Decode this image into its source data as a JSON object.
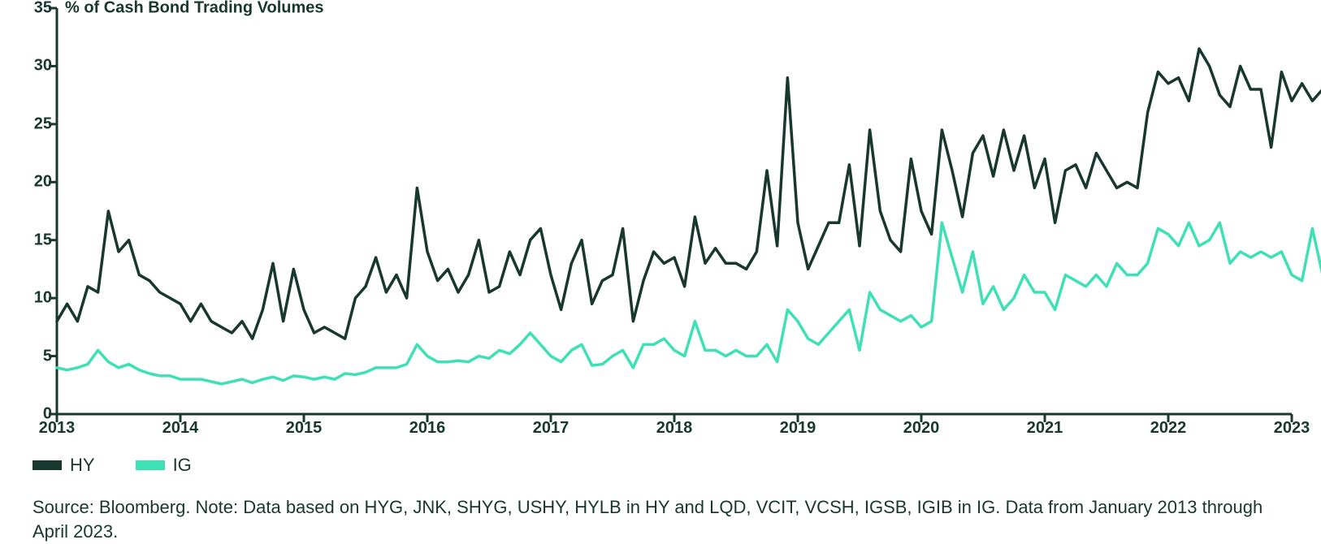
{
  "chart": {
    "type": "line",
    "axis_title": "% of Cash Bond Trading Volumes",
    "text_color": "#18382f",
    "background_color": "#ffffff",
    "axis_line_color": "#18382f",
    "axis_line_width": 3,
    "tick_length": 10,
    "y": {
      "min": 0,
      "max": 35,
      "step": 5,
      "label_fontsize": 20,
      "label_fontweight": 700
    },
    "x": {
      "min": 2013,
      "max": 2023,
      "ticks": [
        2013,
        2014,
        2015,
        2016,
        2017,
        2018,
        2019,
        2020,
        2021,
        2022,
        2023
      ],
      "label_fontsize": 20,
      "label_fontweight": 700
    },
    "line_width": 3.5,
    "series": [
      {
        "name": "HY",
        "color": "#18382f",
        "x": [
          2013.0,
          2013.083,
          2013.167,
          2013.25,
          2013.333,
          2013.417,
          2013.5,
          2013.583,
          2013.667,
          2013.75,
          2013.833,
          2013.917,
          2014.0,
          2014.083,
          2014.167,
          2014.25,
          2014.333,
          2014.417,
          2014.5,
          2014.583,
          2014.667,
          2014.75,
          2014.833,
          2014.917,
          2015.0,
          2015.083,
          2015.167,
          2015.25,
          2015.333,
          2015.417,
          2015.5,
          2015.583,
          2015.667,
          2015.75,
          2015.833,
          2015.917,
          2016.0,
          2016.083,
          2016.167,
          2016.25,
          2016.333,
          2016.417,
          2016.5,
          2016.583,
          2016.667,
          2016.75,
          2016.833,
          2016.917,
          2017.0,
          2017.083,
          2017.167,
          2017.25,
          2017.333,
          2017.417,
          2017.5,
          2017.583,
          2017.667,
          2017.75,
          2017.833,
          2017.917,
          2018.0,
          2018.083,
          2018.167,
          2018.25,
          2018.333,
          2018.417,
          2018.5,
          2018.583,
          2018.667,
          2018.75,
          2018.833,
          2018.917,
          2019.0,
          2019.083,
          2019.167,
          2019.25,
          2019.333,
          2019.417,
          2019.5,
          2019.583,
          2019.667,
          2019.75,
          2019.833,
          2019.917,
          2020.0,
          2020.083,
          2020.167,
          2020.25,
          2020.333,
          2020.417,
          2020.5,
          2020.583,
          2020.667,
          2020.75,
          2020.833,
          2020.917,
          2021.0,
          2021.083,
          2021.167,
          2021.25,
          2021.333,
          2021.417,
          2021.5,
          2021.583,
          2021.667,
          2021.75,
          2021.833,
          2021.917,
          2022.0,
          2022.083,
          2022.167,
          2022.25,
          2022.333,
          2022.417,
          2022.5,
          2022.583,
          2022.667,
          2022.75,
          2022.833,
          2022.917,
          2023.0,
          2023.083,
          2023.167,
          2023.25
        ],
        "y": [
          8.0,
          9.5,
          8.0,
          11.0,
          10.5,
          17.5,
          14.0,
          15.0,
          12.0,
          11.5,
          10.5,
          10.0,
          9.5,
          8.0,
          9.5,
          8.0,
          7.5,
          7.0,
          8.0,
          6.5,
          9.0,
          13.0,
          8.0,
          12.5,
          9.0,
          7.0,
          7.5,
          7.0,
          6.5,
          10.0,
          11.0,
          13.5,
          10.5,
          12.0,
          10.0,
          19.5,
          14.0,
          11.5,
          12.5,
          10.5,
          12.0,
          15.0,
          10.5,
          11.0,
          14.0,
          12.0,
          15.0,
          16.0,
          12.0,
          9.0,
          13.0,
          15.0,
          9.5,
          11.5,
          12.0,
          16.0,
          8.0,
          11.5,
          14.0,
          13.0,
          13.5,
          11.0,
          17.0,
          13.0,
          14.3,
          13.0,
          13.0,
          12.5,
          14.0,
          21.0,
          14.5,
          29.0,
          16.5,
          12.5,
          14.5,
          16.5,
          16.5,
          21.5,
          14.5,
          24.5,
          17.5,
          15.0,
          14.0,
          22.0,
          17.5,
          15.5,
          24.5,
          21.0,
          17.0,
          22.5,
          24.0,
          20.5,
          24.5,
          21.0,
          24.0,
          19.5,
          22.0,
          16.5,
          21.0,
          21.5,
          19.5,
          22.5,
          21.0,
          19.5,
          20.0,
          19.5,
          26.0,
          29.5,
          28.5,
          29.0,
          27.0,
          31.5,
          30.0,
          27.5,
          26.5,
          30.0,
          28.0,
          28.0,
          23.0,
          29.5,
          27.0,
          28.5,
          27.0,
          28.0
        ]
      },
      {
        "name": "IG",
        "color": "#3fe0b6",
        "x": [
          2013.0,
          2013.083,
          2013.167,
          2013.25,
          2013.333,
          2013.417,
          2013.5,
          2013.583,
          2013.667,
          2013.75,
          2013.833,
          2013.917,
          2014.0,
          2014.083,
          2014.167,
          2014.25,
          2014.333,
          2014.417,
          2014.5,
          2014.583,
          2014.667,
          2014.75,
          2014.833,
          2014.917,
          2015.0,
          2015.083,
          2015.167,
          2015.25,
          2015.333,
          2015.417,
          2015.5,
          2015.583,
          2015.667,
          2015.75,
          2015.833,
          2015.917,
          2016.0,
          2016.083,
          2016.167,
          2016.25,
          2016.333,
          2016.417,
          2016.5,
          2016.583,
          2016.667,
          2016.75,
          2016.833,
          2016.917,
          2017.0,
          2017.083,
          2017.167,
          2017.25,
          2017.333,
          2017.417,
          2017.5,
          2017.583,
          2017.667,
          2017.75,
          2017.833,
          2017.917,
          2018.0,
          2018.083,
          2018.167,
          2018.25,
          2018.333,
          2018.417,
          2018.5,
          2018.583,
          2018.667,
          2018.75,
          2018.833,
          2018.917,
          2019.0,
          2019.083,
          2019.167,
          2019.25,
          2019.333,
          2019.417,
          2019.5,
          2019.583,
          2019.667,
          2019.75,
          2019.833,
          2019.917,
          2020.0,
          2020.083,
          2020.167,
          2020.25,
          2020.333,
          2020.417,
          2020.5,
          2020.583,
          2020.667,
          2020.75,
          2020.833,
          2020.917,
          2021.0,
          2021.083,
          2021.167,
          2021.25,
          2021.333,
          2021.417,
          2021.5,
          2021.583,
          2021.667,
          2021.75,
          2021.833,
          2021.917,
          2022.0,
          2022.083,
          2022.167,
          2022.25,
          2022.333,
          2022.417,
          2022.5,
          2022.583,
          2022.667,
          2022.75,
          2022.833,
          2022.917,
          2023.0,
          2023.083,
          2023.167,
          2023.25
        ],
        "y": [
          4.0,
          3.8,
          4.0,
          4.3,
          5.5,
          4.5,
          4.0,
          4.3,
          3.8,
          3.5,
          3.3,
          3.3,
          3.0,
          3.0,
          3.0,
          2.8,
          2.6,
          2.8,
          3.0,
          2.7,
          3.0,
          3.2,
          2.9,
          3.3,
          3.2,
          3.0,
          3.2,
          3.0,
          3.5,
          3.4,
          3.6,
          4.0,
          4.0,
          4.0,
          4.3,
          6.0,
          5.0,
          4.5,
          4.5,
          4.6,
          4.5,
          5.0,
          4.8,
          5.5,
          5.2,
          6.0,
          7.0,
          6.0,
          5.0,
          4.5,
          5.5,
          6.0,
          4.2,
          4.3,
          5.0,
          5.5,
          4.0,
          6.0,
          6.0,
          6.5,
          5.5,
          5.0,
          8.0,
          5.5,
          5.5,
          5.0,
          5.5,
          5.0,
          5.0,
          6.0,
          4.5,
          9.0,
          8.0,
          6.5,
          6.0,
          7.0,
          8.0,
          9.0,
          5.5,
          10.5,
          9.0,
          8.5,
          8.0,
          8.5,
          7.5,
          8.0,
          16.5,
          13.5,
          10.5,
          14.0,
          9.5,
          11.0,
          9.0,
          10.0,
          12.0,
          10.5,
          10.5,
          9.0,
          12.0,
          11.5,
          11.0,
          12.0,
          11.0,
          13.0,
          12.0,
          12.0,
          13.0,
          16.0,
          15.5,
          14.5,
          16.5,
          14.5,
          15.0,
          16.5,
          13.0,
          14.0,
          13.5,
          14.0,
          13.5,
          14.0,
          12.0,
          11.5,
          16.0,
          12.0
        ]
      }
    ]
  },
  "legend": {
    "items": [
      {
        "label": "HY",
        "color": "#18382f"
      },
      {
        "label": "IG",
        "color": "#3fe0b6"
      }
    ],
    "swatch_w": 36,
    "swatch_h": 12,
    "fontsize": 22,
    "text_color": "#18382f"
  },
  "source": {
    "text": "Source: Bloomberg. Note: Data based on HYG, JNK, SHYG, USHY, HYLB in HY and LQD, VCIT, VCSH, IGSB, IGIB in IG. Data from January 2013 through April 2023.",
    "fontsize": 22,
    "color": "#18382f"
  }
}
